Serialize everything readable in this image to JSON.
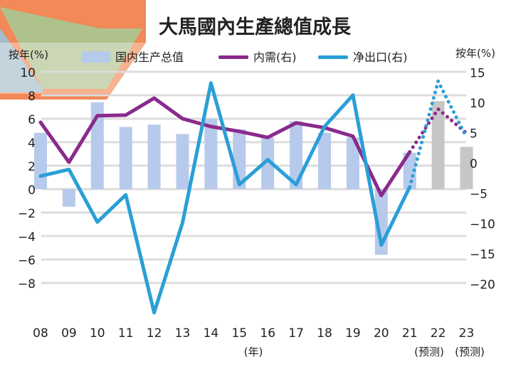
{
  "chart_data": {
    "type": "bar+line",
    "title": "大馬國內生產總值成長",
    "ylabel_left": "按年(%)",
    "ylabel_right": "按年(%)",
    "xlabel": "(年)",
    "forecast_label": "(预测)",
    "categories": [
      "08",
      "09",
      "10",
      "11",
      "12",
      "13",
      "14",
      "15",
      "16",
      "17",
      "18",
      "19",
      "20",
      "21",
      "22",
      "23"
    ],
    "forecast_categories": [
      "22",
      "23"
    ],
    "left_ticks": [
      10,
      8,
      6,
      4,
      2,
      0,
      -2,
      -4,
      -6,
      -8
    ],
    "left_tick_labels": [
      "10",
      "8",
      "6",
      "4",
      "2",
      "0",
      "−2",
      "−4",
      "−6",
      "−8"
    ],
    "right_ticks": [
      15,
      10,
      5,
      0,
      -5,
      -10,
      -15,
      -20
    ],
    "right_tick_labels": [
      "15",
      "10",
      "5",
      "0",
      "−5",
      "−10",
      "−15",
      "−20"
    ],
    "ylim_left": [
      -10,
      10
    ],
    "ylim_right": [
      -26,
      15
    ],
    "grid": true,
    "legend_position": "top",
    "series": [
      {
        "name": "国内生产总值",
        "axis": "left",
        "kind": "bar",
        "color": "#b7caeb",
        "forecast_color": "#c6c6c8",
        "values": [
          4.8,
          -1.5,
          7.4,
          5.3,
          5.5,
          4.7,
          6.0,
          5.1,
          4.4,
          5.8,
          4.8,
          4.4,
          -5.6,
          3.1,
          7.5,
          3.6
        ]
      },
      {
        "name": "内需(右)",
        "axis": "right",
        "kind": "line",
        "color": "#8a2a8c",
        "values": [
          6.7,
          0.1,
          7.8,
          7.9,
          10.7,
          7.3,
          6.0,
          5.2,
          4.2,
          6.6,
          5.8,
          4.4,
          -5.4,
          1.8,
          8.9,
          4.9
        ]
      },
      {
        "name": "净出口(右)",
        "axis": "right",
        "kind": "line",
        "color": "#2a9fd6",
        "values": [
          -2.2,
          -1.1,
          -9.8,
          -5.3,
          -24.8,
          -9.9,
          13.2,
          -3.6,
          0.5,
          -3.6,
          6.0,
          11.2,
          -13.6,
          -4.0,
          13.5,
          4.2
        ]
      }
    ]
  }
}
